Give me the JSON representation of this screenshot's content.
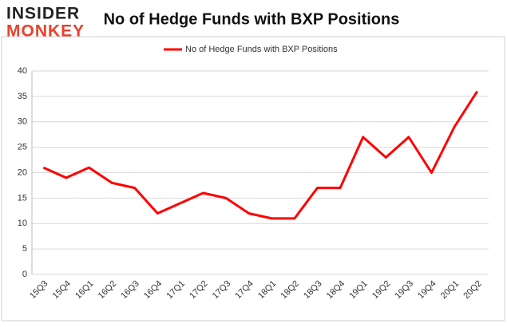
{
  "logo": {
    "line1": "INSIDER",
    "line2": "MONKEY"
  },
  "chart_data": {
    "type": "line",
    "title": "No of Hedge Funds with BXP Positions",
    "categories": [
      "15Q3",
      "15Q4",
      "16Q1",
      "16Q2",
      "16Q3",
      "16Q4",
      "17Q1",
      "17Q2",
      "17Q3",
      "17Q4",
      "18Q1",
      "18Q2",
      "18Q3",
      "18Q4",
      "19Q1",
      "19Q2",
      "19Q3",
      "19Q4",
      "20Q1",
      "20Q2"
    ],
    "series": [
      {
        "name": "No of Hedge Funds with BXP Positions",
        "color": "#ff0000",
        "values": [
          21,
          19,
          21,
          18,
          17,
          12,
          14,
          16,
          15,
          12,
          11,
          11,
          17,
          17,
          27,
          23,
          27,
          20,
          29,
          36
        ]
      }
    ],
    "ylim": [
      0,
      40
    ],
    "yticks": [
      0,
      5,
      10,
      15,
      20,
      25,
      30,
      35,
      40
    ],
    "grid": true,
    "legend": "top"
  }
}
